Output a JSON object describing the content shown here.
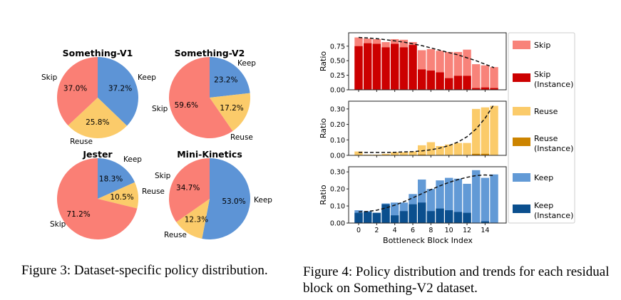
{
  "colors": {
    "skip": "#f8837a",
    "skip_instance": "#cc0000",
    "reuse": "#fbcb6a",
    "reuse_instance": "#cc8400",
    "keep": "#629ad6",
    "keep_instance": "#0b4f8e",
    "pie_keep": "#5d94d6",
    "pie_reuse": "#fbcb6a",
    "pie_skip": "#fa7f75"
  },
  "figure3": {
    "caption": "Figure 3: Dataset-specific policy distribution.",
    "pies": [
      {
        "title": "Something-V1",
        "slices": [
          {
            "label": "Keep",
            "value": 37.2,
            "text": "37.2%"
          },
          {
            "label": "Reuse",
            "value": 25.8,
            "text": "25.8%"
          },
          {
            "label": "Skip",
            "value": 37.0,
            "text": "37.0%"
          }
        ]
      },
      {
        "title": "Something-V2",
        "slices": [
          {
            "label": "Keep",
            "value": 23.2,
            "text": "23.2%"
          },
          {
            "label": "Reuse",
            "value": 17.2,
            "text": "17.2%"
          },
          {
            "label": "Skip",
            "value": 59.6,
            "text": "59.6%"
          }
        ]
      },
      {
        "title": "Jester",
        "slices": [
          {
            "label": "Keep",
            "value": 18.3,
            "text": "18.3%"
          },
          {
            "label": "Reuse",
            "value": 10.5,
            "text": "10.5%"
          },
          {
            "label": "Skip",
            "value": 71.2,
            "text": "71.2%"
          }
        ]
      },
      {
        "title": "Mini-Kinetics",
        "slices": [
          {
            "label": "Keep",
            "value": 53.0,
            "text": "53.0%"
          },
          {
            "label": "Reuse",
            "value": 12.3,
            "text": "12.3%"
          },
          {
            "label": "Skip",
            "value": 34.7,
            "text": "34.7%"
          }
        ]
      }
    ]
  },
  "figure4": {
    "caption": "Figure 4: Policy distribution and trends for each residual block on Something-V2 dataset.",
    "xlabel": "Bottleneck Block Index",
    "ylabel": "Ratio",
    "x_ticks": [
      "0",
      "2",
      "4",
      "6",
      "8",
      "10",
      "12",
      "14"
    ],
    "legend": [
      {
        "key": "skip",
        "lines": [
          "Skip"
        ]
      },
      {
        "key": "skip_instance",
        "lines": [
          "Skip",
          "(Instance)"
        ]
      },
      {
        "key": "reuse",
        "lines": [
          "Reuse"
        ]
      },
      {
        "key": "reuse_instance",
        "lines": [
          "Reuse",
          "(Instance)"
        ]
      },
      {
        "key": "keep",
        "lines": [
          "Keep"
        ]
      },
      {
        "key": "keep_instance",
        "lines": [
          "Keep",
          "(Instance)"
        ]
      }
    ]
  },
  "chart_data": [
    {
      "type": "pie",
      "title": "Something-V1",
      "labels": [
        "Keep",
        "Reuse",
        "Skip"
      ],
      "values": [
        37.2,
        25.8,
        37.0
      ]
    },
    {
      "type": "pie",
      "title": "Something-V2",
      "labels": [
        "Keep",
        "Reuse",
        "Skip"
      ],
      "values": [
        23.2,
        17.2,
        59.6
      ]
    },
    {
      "type": "pie",
      "title": "Jester",
      "labels": [
        "Keep",
        "Reuse",
        "Skip"
      ],
      "values": [
        18.3,
        10.5,
        71.2
      ]
    },
    {
      "type": "pie",
      "title": "Mini-Kinetics",
      "labels": [
        "Keep",
        "Reuse",
        "Skip"
      ],
      "values": [
        53.0,
        12.3,
        34.7
      ]
    },
    {
      "type": "bar",
      "title": "Skip",
      "ylabel": "Ratio",
      "ylim": [
        0,
        0.98
      ],
      "yticks": [
        "0.00",
        "0.25",
        "0.50",
        "0.75"
      ],
      "categories": [
        0,
        1,
        2,
        3,
        4,
        5,
        6,
        7,
        8,
        9,
        10,
        11,
        12,
        13,
        14,
        15
      ],
      "series": [
        {
          "name": "Skip",
          "values": [
            0.9,
            0.88,
            0.87,
            0.82,
            0.87,
            0.86,
            0.82,
            0.68,
            0.7,
            0.67,
            0.65,
            0.65,
            0.69,
            0.44,
            0.42,
            0.39
          ]
        },
        {
          "name": "Skip (Instance)",
          "values": [
            0.75,
            0.8,
            0.79,
            0.73,
            0.79,
            0.73,
            0.77,
            0.35,
            0.33,
            0.3,
            0.2,
            0.24,
            0.24,
            0.03,
            0.04,
            0.03
          ]
        }
      ],
      "trend": [
        0.9,
        0.89,
        0.88,
        0.86,
        0.84,
        0.82,
        0.79,
        0.76,
        0.72,
        0.68,
        0.64,
        0.6,
        0.55,
        0.5,
        0.44,
        0.38
      ]
    },
    {
      "type": "bar",
      "title": "Reuse",
      "ylabel": "Ratio",
      "ylim": [
        0,
        0.35
      ],
      "yticks": [
        "0.00",
        "0.10",
        "0.20",
        "0.30"
      ],
      "categories": [
        0,
        1,
        2,
        3,
        4,
        5,
        6,
        7,
        8,
        9,
        10,
        11,
        12,
        13,
        14,
        15
      ],
      "series": [
        {
          "name": "Reuse",
          "values": [
            0.025,
            0.005,
            0.005,
            0.01,
            0.02,
            0.02,
            0.025,
            0.065,
            0.085,
            0.06,
            0.07,
            0.08,
            0.08,
            0.3,
            0.31,
            0.32
          ]
        },
        {
          "name": "Reuse (Instance)",
          "values": [
            0,
            0,
            0,
            0,
            0,
            0,
            0,
            0.005,
            0,
            0,
            0,
            0,
            0,
            0.01,
            0.01,
            0
          ]
        }
      ],
      "trend": [
        0.02,
        0.019,
        0.019,
        0.019,
        0.02,
        0.022,
        0.024,
        0.029,
        0.036,
        0.047,
        0.063,
        0.086,
        0.12,
        0.17,
        0.24,
        0.33
      ]
    },
    {
      "type": "bar",
      "title": "Keep",
      "ylabel": "Ratio",
      "ylim": [
        0,
        0.33
      ],
      "yticks": [
        "0.00",
        "0.10",
        "0.20",
        "0.30"
      ],
      "categories": [
        0,
        1,
        2,
        3,
        4,
        5,
        6,
        7,
        8,
        9,
        10,
        11,
        12,
        13,
        14,
        15
      ],
      "series": [
        {
          "name": "Keep",
          "values": [
            0.075,
            0.07,
            0.06,
            0.115,
            0.12,
            0.12,
            0.17,
            0.255,
            0.2,
            0.25,
            0.265,
            0.26,
            0.23,
            0.31,
            0.265,
            0.285
          ]
        },
        {
          "name": "Keep (Instance)",
          "values": [
            0.06,
            0.065,
            0.06,
            0.11,
            0.045,
            0.07,
            0.11,
            0.12,
            0.07,
            0.085,
            0.075,
            0.065,
            0.06,
            0,
            0.01,
            0
          ]
        }
      ],
      "trend": [
        0.065,
        0.068,
        0.075,
        0.088,
        0.105,
        0.125,
        0.148,
        0.172,
        0.196,
        0.218,
        0.238,
        0.255,
        0.268,
        0.278,
        0.282,
        0.278
      ]
    }
  ]
}
